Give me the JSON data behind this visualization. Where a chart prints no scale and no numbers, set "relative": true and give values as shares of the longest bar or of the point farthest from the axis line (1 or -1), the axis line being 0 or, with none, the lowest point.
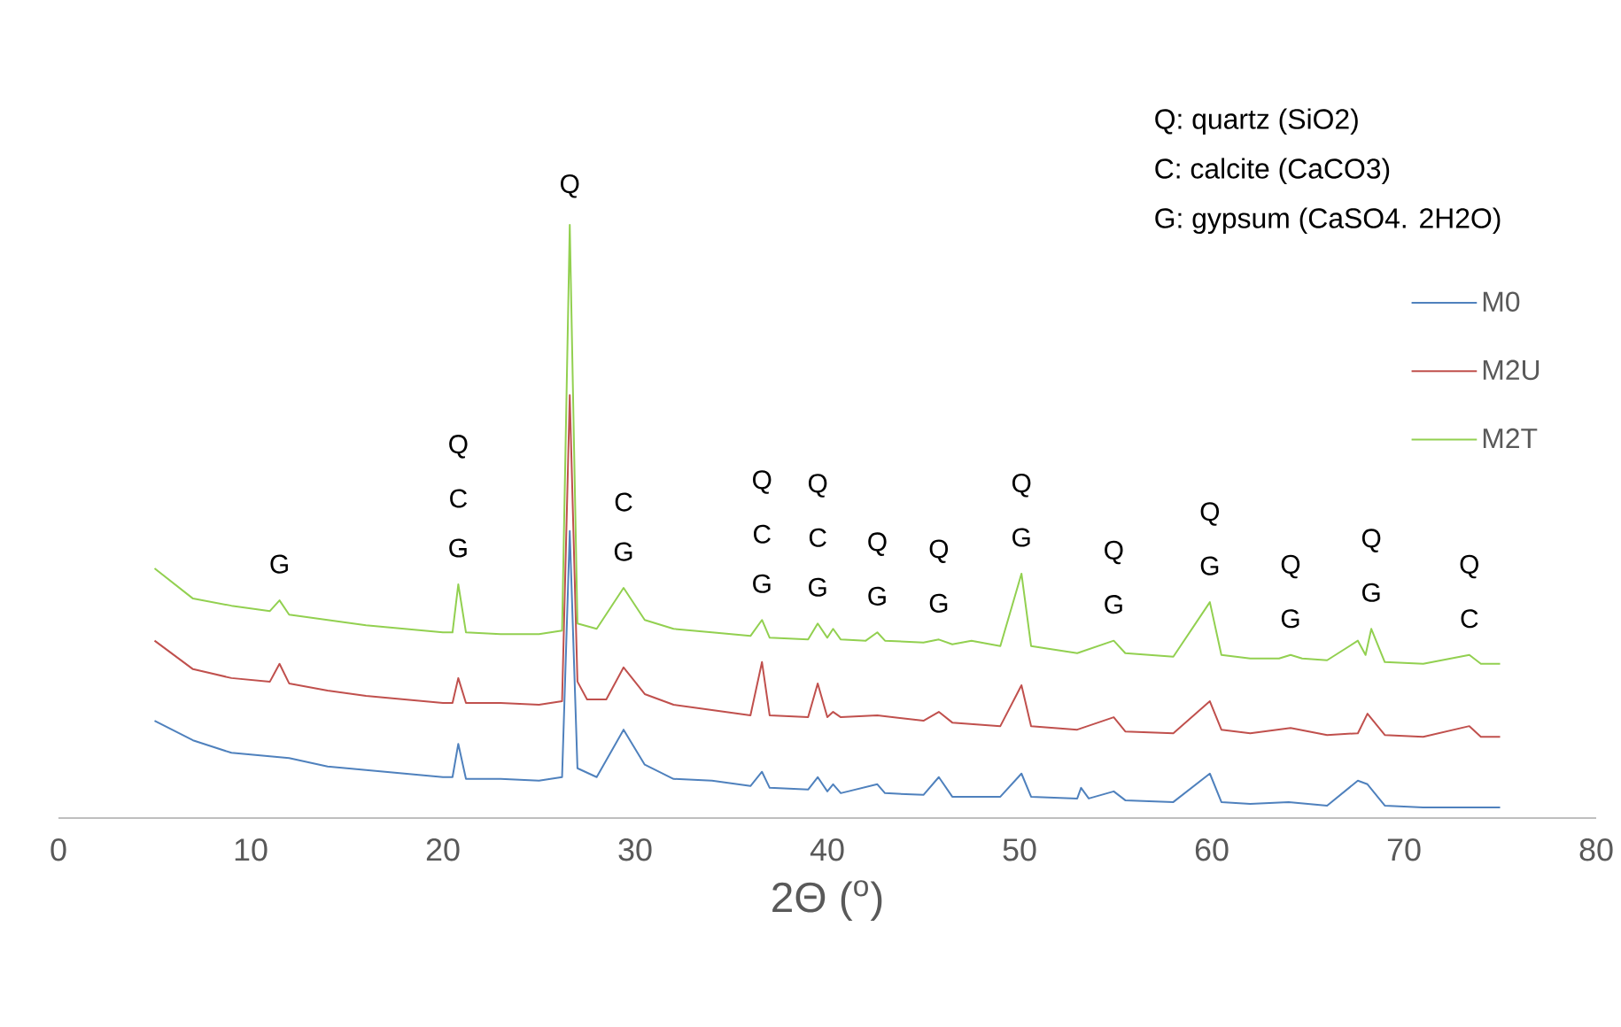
{
  "chart_data": {
    "type": "line",
    "relative": true,
    "xlabel": "2Θ ($^{o}$)",
    "xlim": [
      0,
      80
    ],
    "xticks": [
      0,
      10,
      20,
      30,
      40,
      50,
      60,
      70,
      80
    ],
    "legend": "right",
    "marker": "none",
    "line_style": "solid",
    "grid": false,
    "series": [
      {
        "name": "M0",
        "color": "#4f81bd",
        "x": [
          5,
          7,
          9,
          11,
          12,
          14,
          16,
          18,
          20,
          20.5,
          20.8,
          21.2,
          23,
          25,
          26.2,
          26.6,
          27,
          28,
          29.4,
          30.5,
          32,
          34,
          36,
          36.6,
          37,
          39,
          39.5,
          40,
          40.3,
          40.7,
          42.6,
          43,
          45,
          45.8,
          46.5,
          49,
          50.1,
          50.6,
          53,
          53.2,
          53.6,
          54.9,
          55.5,
          58,
          59.9,
          60.5,
          62,
          64,
          66,
          67.6,
          68.1,
          69,
          71,
          75
        ],
        "values": [
          0.164,
          0.131,
          0.11,
          0.104,
          0.101,
          0.087,
          0.081,
          0.075,
          0.069,
          0.069,
          0.125,
          0.066,
          0.066,
          0.063,
          0.069,
          0.484,
          0.084,
          0.069,
          0.149,
          0.09,
          0.066,
          0.063,
          0.054,
          0.078,
          0.051,
          0.048,
          0.069,
          0.045,
          0.057,
          0.042,
          0.057,
          0.042,
          0.039,
          0.069,
          0.036,
          0.036,
          0.075,
          0.036,
          0.033,
          0.051,
          0.033,
          0.045,
          0.03,
          0.027,
          0.075,
          0.027,
          0.024,
          0.027,
          0.021,
          0.063,
          0.057,
          0.021,
          0.018,
          0.018
        ]
      },
      {
        "name": "M2U",
        "color": "#c0504d",
        "x": [
          5,
          7,
          9,
          11,
          11.5,
          12,
          14,
          16,
          18,
          20,
          20.5,
          20.8,
          21.2,
          23,
          25,
          26.2,
          26.6,
          27,
          27.5,
          28.5,
          29.4,
          30.5,
          32,
          34,
          36,
          36.6,
          37,
          39,
          39.5,
          40,
          40.3,
          40.7,
          42.6,
          45,
          45.8,
          46.5,
          49,
          50.1,
          50.6,
          53,
          54.9,
          55.5,
          58,
          59.9,
          60.5,
          62,
          64.1,
          66,
          67.6,
          68.1,
          69,
          71,
          73.4,
          74,
          75
        ],
        "values": [
          0.299,
          0.251,
          0.236,
          0.23,
          0.26,
          0.227,
          0.215,
          0.206,
          0.2,
          0.194,
          0.194,
          0.236,
          0.194,
          0.194,
          0.191,
          0.197,
          0.713,
          0.23,
          0.2,
          0.2,
          0.254,
          0.209,
          0.191,
          0.182,
          0.173,
          0.263,
          0.173,
          0.17,
          0.227,
          0.17,
          0.179,
          0.17,
          0.173,
          0.164,
          0.179,
          0.161,
          0.155,
          0.224,
          0.155,
          0.149,
          0.17,
          0.146,
          0.143,
          0.197,
          0.149,
          0.143,
          0.152,
          0.14,
          0.143,
          0.176,
          0.14,
          0.137,
          0.155,
          0.137,
          0.137
        ]
      },
      {
        "name": "M2T",
        "color": "#92d050",
        "x": [
          5,
          7,
          9,
          11,
          11.5,
          12,
          14,
          16,
          18,
          20,
          20.5,
          20.8,
          21.2,
          23,
          25,
          26.2,
          26.6,
          27,
          28,
          29.4,
          30.5,
          32,
          34,
          36,
          36.6,
          37,
          39,
          39.5,
          40,
          40.3,
          40.7,
          42,
          42.6,
          43,
          45,
          45.8,
          46.5,
          47.5,
          49,
          50.1,
          50.6,
          53,
          54.9,
          55.5,
          58,
          59.9,
          60.5,
          62,
          63.5,
          64.1,
          64.7,
          66,
          67.6,
          68,
          68.3,
          69,
          71,
          73.4,
          74,
          75
        ],
        "values": [
          0.421,
          0.37,
          0.358,
          0.349,
          0.367,
          0.343,
          0.334,
          0.325,
          0.319,
          0.313,
          0.313,
          0.394,
          0.313,
          0.31,
          0.31,
          0.316,
          1,
          0.328,
          0.319,
          0.388,
          0.334,
          0.319,
          0.313,
          0.307,
          0.334,
          0.304,
          0.301,
          0.328,
          0.304,
          0.319,
          0.301,
          0.299,
          0.313,
          0.299,
          0.296,
          0.301,
          0.293,
          0.299,
          0.29,
          0.412,
          0.29,
          0.278,
          0.299,
          0.278,
          0.272,
          0.364,
          0.275,
          0.269,
          0.269,
          0.275,
          0.269,
          0.266,
          0.299,
          0.275,
          0.319,
          0.263,
          0.26,
          0.275,
          0.26,
          0.26
        ]
      }
    ],
    "annotations": [
      {
        "text": "G",
        "x": 11.5,
        "y": 0.367
      },
      "Q",
      "C",
      {
        "text": "G",
        "x": 20.8,
        "y": 0.394
      },
      {
        "text": "Q",
        "x": 26.6,
        "y": 1
      },
      "C",
      {
        "text": "G",
        "x": 29.4,
        "y": 0.388
      },
      "Q",
      "C",
      {
        "text": "G",
        "x": 36.6,
        "y": 0.334
      },
      "Q",
      "C",
      {
        "text": "G",
        "x": 39.5,
        "y": 0.328
      },
      "Q",
      {
        "text": "G",
        "x": 42.6,
        "y": 0.313
      },
      "Q",
      {
        "text": "G",
        "x": 45.8,
        "y": 0.301
      },
      "Q",
      {
        "text": "G",
        "x": 50.1,
        "y": 0.412
      },
      "Q",
      {
        "text": "G",
        "x": 54.9,
        "y": 0.299
      },
      "Q",
      {
        "text": "G",
        "x": 59.9,
        "y": 0.364
      },
      "Q",
      {
        "text": "G",
        "x": 64.1,
        "y": 0.275
      },
      "Q",
      {
        "text": "G",
        "x": 68.3,
        "y": 0.319
      },
      "Q",
      {
        "text": "C",
        "x": 73.4,
        "y": 0.275
      },
      "Q: quartz (SiO2)",
      "C: calcite (CaCO3)",
      "G: gypsum (CaSO4. 2H2O)"
    ]
  }
}
